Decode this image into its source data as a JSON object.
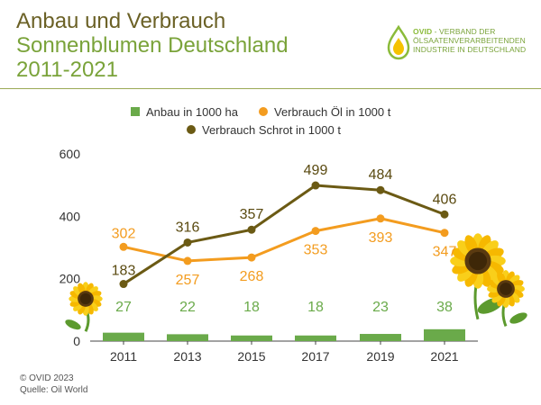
{
  "header": {
    "title_line1": "Anbau und Verbrauch",
    "title_line2": "Sonnenblumen Deutschland",
    "title_line3": "2011-2021"
  },
  "logo": {
    "name": "OVID",
    "line1": " - VERBAND DER",
    "line2": "ÖLSAATENVERARBEITENDEN",
    "line3": "INDUSTRIE IN DEUTSCHLAND",
    "icon": "oil-drop-icon"
  },
  "footer": {
    "copyright": "© OVID 2023",
    "source": "Quelle: Oil World"
  },
  "chart_data": {
    "type": "bar+line",
    "categories": [
      "2011",
      "2013",
      "2015",
      "2017",
      "2019",
      "2021"
    ],
    "ylim": [
      0,
      600
    ],
    "yticks": [
      0,
      200,
      400,
      600
    ],
    "legend_position": "top",
    "series": [
      {
        "name": "Anbau in 1000 ha",
        "kind": "bar",
        "color": "#6aaa4a",
        "label_color": "#6aaa4a",
        "values": [
          27,
          22,
          18,
          18,
          23,
          38
        ]
      },
      {
        "name": "Verbrauch Öl in 1000 t",
        "kind": "line",
        "color": "#f39c1f",
        "label_color": "#f39c1f",
        "values": [
          302,
          257,
          268,
          353,
          393,
          347
        ]
      },
      {
        "name": "Verbrauch Schrot in 1000 t",
        "kind": "line",
        "color": "#6b5a14",
        "label_color": "#5a4a10",
        "values": [
          183,
          316,
          357,
          499,
          484,
          406
        ]
      }
    ],
    "grid": false
  }
}
